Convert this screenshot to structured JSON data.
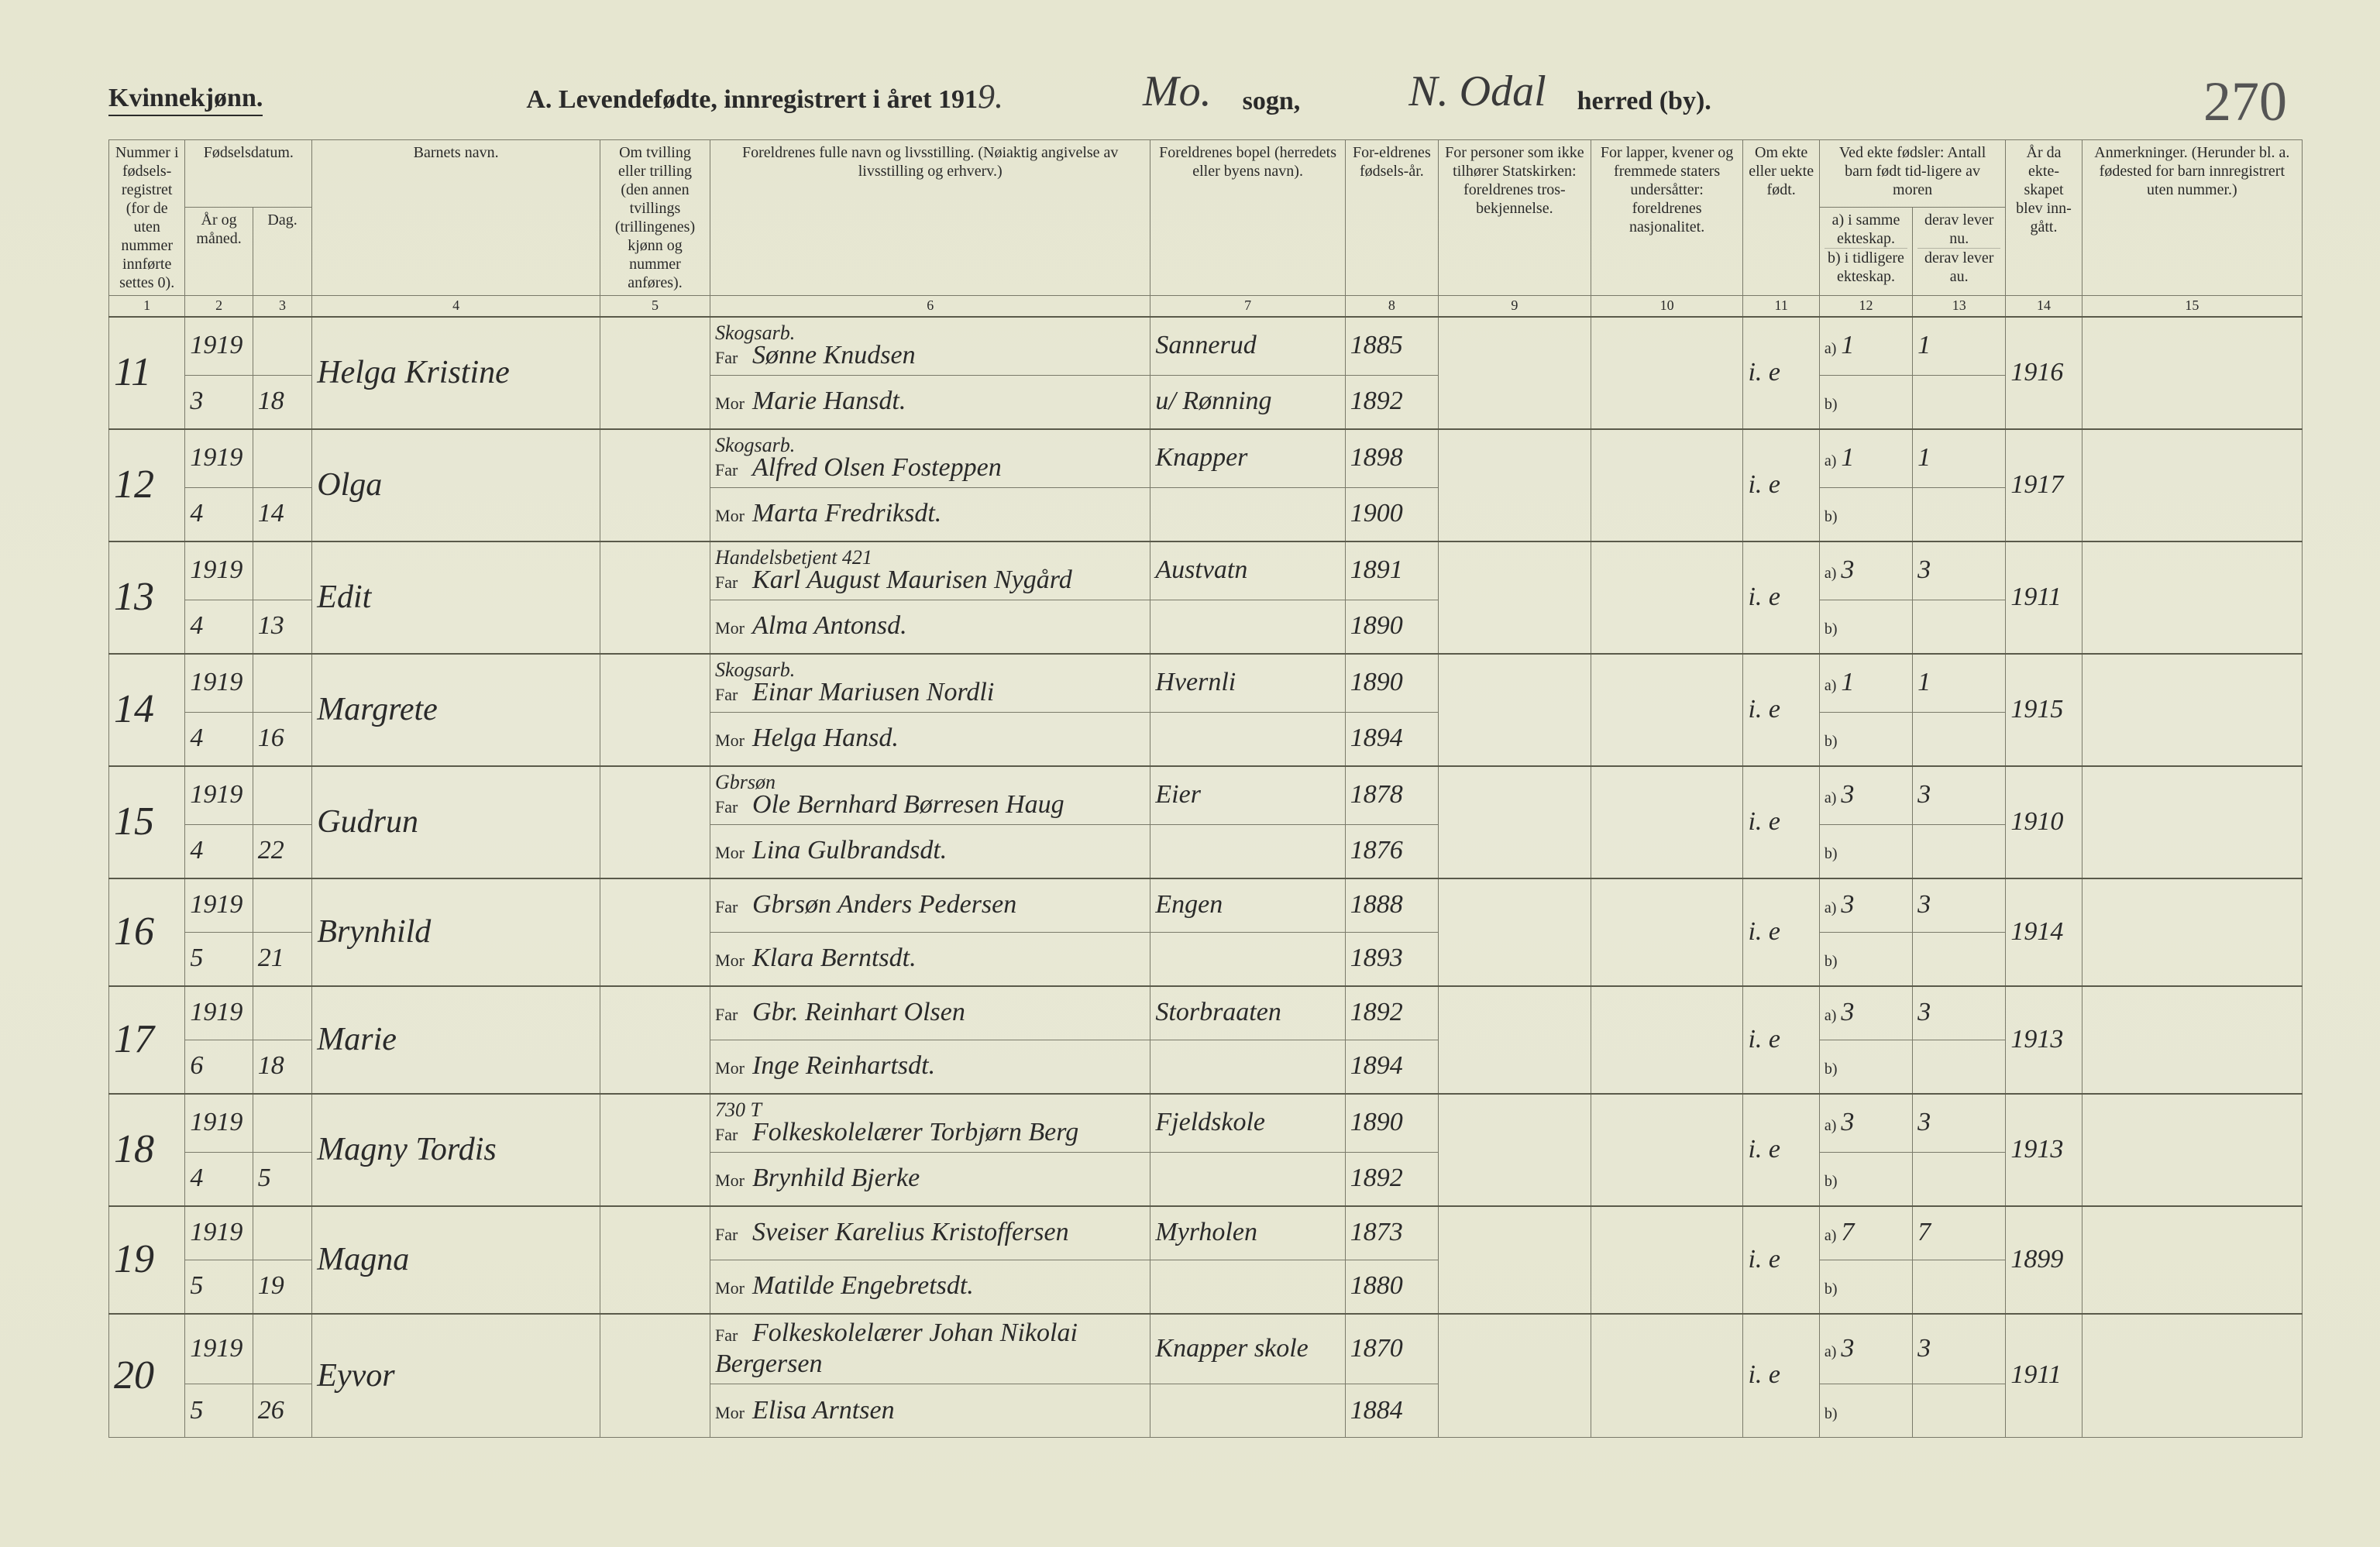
{
  "header": {
    "gender_label": "Kvinnekjønn.",
    "title_prefix": "A.  Levendefødte, innregistrert i året 191",
    "year_suffix": "9.",
    "sogn_value": "Mo.",
    "sogn_label": "sogn,",
    "herred_value": "N. Odal",
    "herred_label": "herred (by).",
    "page_number": "270"
  },
  "columns": {
    "c1": "Nummer i fødsels-registret (for de uten nummer innførte settes 0).",
    "c2_top": "Fødselsdatum.",
    "c2a": "År og måned.",
    "c2b": "Dag.",
    "c4": "Barnets navn.",
    "c5": "Om tvilling eller trilling (den annen tvillings (trillingenes) kjønn og nummer anføres).",
    "c6": "Foreldrenes fulle navn og livsstilling. (Nøiaktig angivelse av livsstilling og erhverv.)",
    "c7": "Foreldrenes bopel (herredets eller byens navn).",
    "c8": "For-eldrenes fødsels-år.",
    "c9": "For personer som ikke tilhører Statskirken: foreldrenes tros-bekjennelse.",
    "c10": "For lapper, kvener og fremmede staters undersåtter: foreldrenes nasjonalitet.",
    "c11": "Om ekte eller uekte født.",
    "c12_top": "Ved ekte fødsler: Antall barn født tid-ligere av moren",
    "c12a": "a) i samme ekteskap.",
    "c12b": "b) i tidligere ekteskap.",
    "c13a": "derav lever nu.",
    "c13b": "derav lever au.",
    "c14": "År da ekte-skapet blev inn-gått.",
    "c15": "Anmerkninger. (Herunder bl. a. fødested for barn innregistrert uten nummer.)",
    "far_label": "Far",
    "mor_label": "Mor",
    "a_label": "a)",
    "b_label": "b)",
    "nums": [
      "1",
      "2",
      "3",
      "4",
      "5",
      "6",
      "7",
      "8",
      "9",
      "10",
      "11",
      "12",
      "13",
      "14",
      "15"
    ]
  },
  "rows": [
    {
      "num": "11",
      "year": "1919",
      "mon": "3",
      "day": "18",
      "child": "Helga Kristine",
      "far_occ": "Skogsarb.",
      "far": "Sønne Knudsen",
      "mor": "Marie Hansdt.",
      "bopel_far": "Sannerud",
      "bopel_mor": "u/ Rønning",
      "fy_far": "1885",
      "fy_mor": "1892",
      "ekte": "i. e",
      "a": "1",
      "lever": "1",
      "year_m": "1916"
    },
    {
      "num": "12",
      "year": "1919",
      "mon": "4",
      "day": "14",
      "child": "Olga",
      "far_occ": "Skogsarb.",
      "far": "Alfred Olsen Fosteppen",
      "mor": "Marta Fredriksdt.",
      "bopel_far": "Knapper",
      "bopel_mor": "",
      "fy_far": "1898",
      "fy_mor": "1900",
      "ekte": "i. e",
      "a": "1",
      "lever": "1",
      "year_m": "1917"
    },
    {
      "num": "13",
      "year": "1919",
      "mon": "4",
      "day": "13",
      "child": "Edit",
      "far_occ": "Handelsbetjent 421",
      "far": "Karl August Maurisen Nygård",
      "mor": "Alma Antonsd.",
      "bopel_far": "Austvatn",
      "bopel_mor": "",
      "fy_far": "1891",
      "fy_mor": "1890",
      "ekte": "i. e",
      "a": "3",
      "lever": "3",
      "year_m": "1911"
    },
    {
      "num": "14",
      "year": "1919",
      "mon": "4",
      "day": "16",
      "child": "Margrete",
      "far_occ": "Skogsarb.",
      "far": "Einar Mariusen Nordli",
      "mor": "Helga Hansd.",
      "bopel_far": "Hvernli",
      "bopel_mor": "",
      "fy_far": "1890",
      "fy_mor": "1894",
      "ekte": "i. e",
      "a": "1",
      "lever": "1",
      "year_m": "1915"
    },
    {
      "num": "15",
      "year": "1919",
      "mon": "4",
      "day": "22",
      "child": "Gudrun",
      "far_occ": "Gbrsøn",
      "far": "Ole Bernhard Børresen Haug",
      "mor": "Lina Gulbrandsdt.",
      "bopel_far": "Eier",
      "bopel_mor": "",
      "fy_far": "1878",
      "fy_mor": "1876",
      "ekte": "i. e",
      "a": "3",
      "lever": "3",
      "year_m": "1910"
    },
    {
      "num": "16",
      "year": "1919",
      "mon": "5",
      "day": "21",
      "child": "Brynhild",
      "far_occ": "",
      "far": "Gbrsøn Anders Pedersen",
      "mor": "Klara Berntsdt.",
      "bopel_far": "Engen",
      "bopel_mor": "",
      "fy_far": "1888",
      "fy_mor": "1893",
      "ekte": "i. e",
      "a": "3",
      "lever": "3",
      "year_m": "1914"
    },
    {
      "num": "17",
      "year": "1919",
      "mon": "6",
      "day": "18",
      "child": "Marie",
      "far_occ": "",
      "far": "Gbr. Reinhart Olsen",
      "mor": "Inge Reinhartsdt.",
      "bopel_far": "Storbraaten",
      "bopel_mor": "",
      "fy_far": "1892",
      "fy_mor": "1894",
      "ekte": "i. e",
      "a": "3",
      "lever": "3",
      "year_m": "1913"
    },
    {
      "num": "18",
      "year": "1919",
      "mon": "4",
      "day": "5",
      "child": "Magny Tordis",
      "far_occ": "730 T",
      "far": "Folkeskolelærer Torbjørn Berg",
      "mor": "Brynhild Bjerke",
      "bopel_far": "Fjeldskole",
      "bopel_mor": "",
      "fy_far": "1890",
      "fy_mor": "1892",
      "ekte": "i. e",
      "a": "3",
      "lever": "3",
      "year_m": "1913"
    },
    {
      "num": "19",
      "year": "1919",
      "mon": "5",
      "day": "19",
      "child": "Magna",
      "far_occ": "",
      "far": "Sveiser Karelius Kristoffersen",
      "mor": "Matilde Engebretsdt.",
      "bopel_far": "Myrholen",
      "bopel_mor": "",
      "fy_far": "1873",
      "fy_mor": "1880",
      "ekte": "i. e",
      "a": "7",
      "lever": "7",
      "year_m": "1899"
    },
    {
      "num": "20",
      "year": "1919",
      "mon": "5",
      "day": "26",
      "child": "Eyvor",
      "far_occ": "",
      "far": "Folkeskolelærer Johan Nikolai Bergersen",
      "mor": "Elisa Arntsen",
      "bopel_far": "Knapper skole",
      "bopel_mor": "",
      "fy_far": "1870",
      "fy_mor": "1884",
      "ekte": "i. e",
      "a": "3",
      "lever": "3",
      "year_m": "1911"
    }
  ],
  "style": {
    "page_bg": "#e8e8d6",
    "ink": "#2a2a2a",
    "border": "#7a7a6a",
    "hand_color": "#3a3a3a",
    "header_font_size": 34,
    "cell_font_size": 22,
    "hand_font_size": 42
  }
}
